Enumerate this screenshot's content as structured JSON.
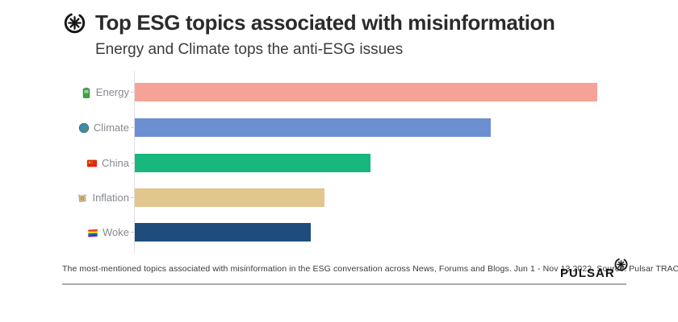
{
  "header": {
    "title": "Top ESG topics associated with misinformation",
    "subtitle": "Energy and Climate tops the anti-ESG issues"
  },
  "chart_data": {
    "type": "bar",
    "orientation": "horizontal",
    "categories": [
      "Energy",
      "Climate",
      "China",
      "Inflation",
      "Woke"
    ],
    "values": [
      100,
      77,
      51,
      41,
      38
    ],
    "value_note": "relative bar lengths as % of longest bar; no numeric axis or data labels shown",
    "icons": [
      "battery-emoji",
      "globe-emoji",
      "china-flag-emoji",
      "money-with-wings-emoji",
      "rainbow-flag-emoji"
    ],
    "colors": [
      "#F5A396",
      "#6C8FD2",
      "#17B77E",
      "#E3C58E",
      "#1D4C7D"
    ],
    "title": "Top ESG topics associated with misinformation",
    "subtitle": "Energy and Climate tops the anti-ESG issues",
    "xlabel": "",
    "ylabel": "",
    "grid": false,
    "legend": false,
    "axis_line_color": "#e0e0e0"
  },
  "footer": {
    "note": "The most-mentioned topics associated with misinformation in the ESG conversation across News, Forums and Blogs. Jun 1 - Nov 13 2022. Source: Pulsar TRAC",
    "brand_name": "PULSAR"
  }
}
